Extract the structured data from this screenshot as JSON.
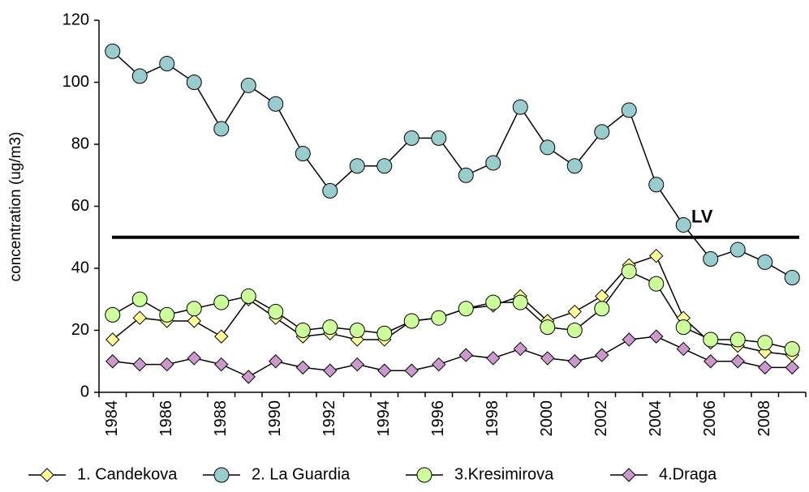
{
  "chart_data": {
    "type": "line",
    "y_label": "concentration (ug/m3)",
    "categories": [
      "1984",
      null,
      "1986",
      null,
      "1988",
      null,
      "1990",
      null,
      "1992",
      null,
      "1994",
      null,
      "1996",
      null,
      "1998",
      null,
      "2000",
      null,
      "2002",
      null,
      "2004",
      null,
      "2006",
      null,
      "2008",
      null
    ],
    "series": [
      {
        "name": "1. Candekova",
        "color": "#ffff99",
        "marker": "diamond",
        "values": [
          17,
          24,
          23,
          23,
          18,
          30,
          24,
          18,
          19,
          17,
          17,
          23,
          24,
          27,
          28,
          31,
          23,
          26,
          31,
          41,
          44,
          24,
          16,
          15,
          13,
          12
        ]
      },
      {
        "name": "2. La Guardia",
        "color": "#99cccc",
        "marker": "circle",
        "values": [
          110,
          102,
          106,
          100,
          85,
          99,
          93,
          77,
          65,
          73,
          73,
          82,
          82,
          70,
          74,
          92,
          79,
          73,
          84,
          91,
          67,
          54,
          43,
          46,
          42,
          37
        ]
      },
      {
        "name": "3.Kresimirova",
        "color": "#ccff99",
        "marker": "circle",
        "values": [
          25,
          30,
          25,
          27,
          29,
          31,
          26,
          20,
          21,
          20,
          19,
          23,
          24,
          27,
          29,
          29,
          21,
          20,
          27,
          39,
          35,
          21,
          17,
          17,
          16,
          14
        ]
      },
      {
        "name": "4.Draga",
        "color": "#cc99cc",
        "marker": "diamond",
        "values": [
          10,
          9,
          9,
          11,
          9,
          5,
          10,
          8,
          7,
          9,
          7,
          7,
          9,
          12,
          11,
          14,
          11,
          10,
          12,
          17,
          18,
          14,
          10,
          10,
          8,
          8
        ]
      }
    ],
    "reference_lines": [
      {
        "value": 50,
        "label": "LV"
      }
    ],
    "ylim": [
      0,
      120
    ],
    "yticks": [
      0,
      20,
      40,
      60,
      80,
      100,
      120
    ],
    "legend": "bottom"
  }
}
